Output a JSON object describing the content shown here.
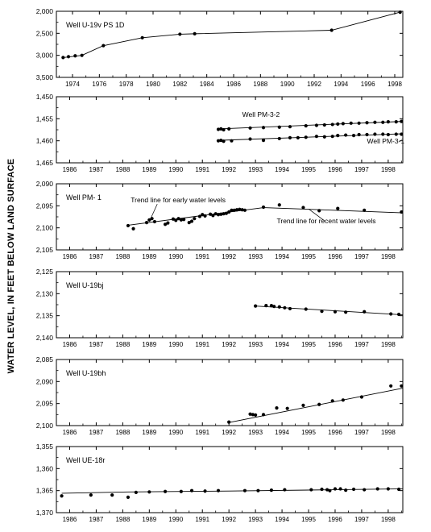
{
  "ylabel": "WATER LEVEL, IN FEET BELOW LAND SURFACE",
  "chart_data": [
    {
      "type": "line",
      "title": "Well U-19v PS 1D",
      "x_ticks": [
        "1974",
        "1976",
        "1978",
        "1980",
        "1982",
        "1984",
        "1986",
        "1988",
        "1990",
        "1992",
        "1994",
        "1996",
        "1998"
      ],
      "xlim": [
        1972.8,
        1998.6
      ],
      "y_ticks": [
        "2,000",
        "2,500",
        "3,000",
        "3,500"
      ],
      "ylim": [
        2000,
        3500
      ],
      "series": [
        {
          "name": "",
          "points": [
            [
              1973.3,
              3050
            ],
            [
              1973.7,
              3030
            ],
            [
              1974.2,
              3010
            ],
            [
              1974.7,
              3000
            ],
            [
              1976.3,
              2780
            ],
            [
              1979.2,
              2600
            ],
            [
              1982.0,
              2520
            ],
            [
              1983.1,
              2510
            ],
            [
              1993.3,
              2430
            ],
            [
              1998.4,
              2020
            ]
          ],
          "line": [
            [
              1973.3,
              3050
            ],
            [
              1974.7,
              3000
            ],
            [
              1976.3,
              2780
            ],
            [
              1979.2,
              2600
            ],
            [
              1982.0,
              2520
            ],
            [
              1983.1,
              2510
            ],
            [
              1993.3,
              2430
            ],
            [
              1998.4,
              2020
            ]
          ]
        }
      ],
      "annotations": []
    },
    {
      "type": "line",
      "title": "",
      "x_ticks": [
        "1986",
        "1987",
        "1988",
        "1989",
        "1990",
        "1991",
        "1992",
        "1993",
        "1994",
        "1995",
        "1996",
        "1997",
        "1998"
      ],
      "xlim": [
        1985.5,
        1998.55
      ],
      "y_ticks": [
        "1,450",
        "1,455",
        "1,460",
        "1,465"
      ],
      "ylim": [
        1450,
        1465
      ],
      "series": [
        {
          "name": "Well PM-3-2",
          "points": [
            [
              1991.6,
              1457.4
            ],
            [
              1991.7,
              1457.3
            ],
            [
              1991.8,
              1457.5
            ],
            [
              1992.0,
              1457.3
            ],
            [
              1992.8,
              1457.1
            ],
            [
              1993.3,
              1457.0
            ],
            [
              1993.9,
              1456.9
            ],
            [
              1994.3,
              1456.8
            ],
            [
              1994.9,
              1456.6
            ],
            [
              1995.3,
              1456.5
            ],
            [
              1995.6,
              1456.4
            ],
            [
              1995.9,
              1456.3
            ],
            [
              1996.1,
              1456.2
            ],
            [
              1996.3,
              1456.1
            ],
            [
              1996.6,
              1456.0
            ],
            [
              1996.9,
              1456.0
            ],
            [
              1997.2,
              1455.9
            ],
            [
              1997.5,
              1455.8
            ],
            [
              1997.8,
              1455.8
            ],
            [
              1998.0,
              1455.7
            ],
            [
              1998.3,
              1455.7
            ],
            [
              1998.5,
              1455.6
            ]
          ],
          "line": [
            [
              1991.6,
              1457.3
            ],
            [
              1998.55,
              1455.6
            ]
          ]
        },
        {
          "name": "Well PM-3-1",
          "points": [
            [
              1991.6,
              1460.0
            ],
            [
              1991.7,
              1459.9
            ],
            [
              1991.8,
              1460.1
            ],
            [
              1992.1,
              1460.0
            ],
            [
              1992.8,
              1459.6
            ],
            [
              1993.3,
              1459.9
            ],
            [
              1993.9,
              1459.5
            ],
            [
              1994.3,
              1459.3
            ],
            [
              1994.6,
              1459.3
            ],
            [
              1994.9,
              1459.2
            ],
            [
              1995.3,
              1459.0
            ],
            [
              1995.6,
              1459.1
            ],
            [
              1995.9,
              1459.0
            ],
            [
              1996.1,
              1458.8
            ],
            [
              1996.4,
              1458.7
            ],
            [
              1996.7,
              1458.8
            ],
            [
              1996.9,
              1458.6
            ],
            [
              1997.2,
              1458.6
            ],
            [
              1997.5,
              1458.5
            ],
            [
              1997.8,
              1458.5
            ],
            [
              1998.0,
              1458.6
            ],
            [
              1998.3,
              1458.5
            ],
            [
              1998.5,
              1458.5
            ]
          ],
          "line": [
            [
              1991.6,
              1459.9
            ],
            [
              1998.55,
              1458.4
            ]
          ]
        }
      ],
      "annotations": [
        {
          "text": "Well PM-3-2",
          "x": 1992.5,
          "y": 1454.6
        },
        {
          "text": "Well PM-3-1",
          "x": 1997.2,
          "y": 1460.6
        }
      ]
    },
    {
      "type": "line",
      "title": "Well PM- 1",
      "x_ticks": [
        "1986",
        "1987",
        "1988",
        "1989",
        "1990",
        "1991",
        "1992",
        "1993",
        "1994",
        "1995",
        "1996",
        "1997",
        "1998"
      ],
      "xlim": [
        1985.5,
        1998.55
      ],
      "y_ticks": [
        "2,090",
        "2,095",
        "2,100",
        "2,105"
      ],
      "ylim": [
        2090,
        2105
      ],
      "series": [
        {
          "name": "",
          "points": [
            [
              1988.2,
              2099.5
            ],
            [
              1988.4,
              2100.2
            ],
            [
              1988.9,
              2098.8
            ],
            [
              1989.0,
              2098.2
            ],
            [
              1989.1,
              2097.9
            ],
            [
              1989.2,
              2098.6
            ],
            [
              1989.6,
              2099.2
            ],
            [
              1989.7,
              2098.9
            ],
            [
              1989.9,
              2098.0
            ],
            [
              1990.0,
              2098.3
            ],
            [
              1990.1,
              2097.9
            ],
            [
              1990.2,
              2098.2
            ],
            [
              1990.3,
              2098.1
            ],
            [
              1990.5,
              2098.8
            ],
            [
              1990.6,
              2098.5
            ],
            [
              1990.7,
              2097.9
            ],
            [
              1990.9,
              2097.4
            ],
            [
              1991.0,
              2097.0
            ],
            [
              1991.1,
              2097.3
            ],
            [
              1991.3,
              2096.9
            ],
            [
              1991.4,
              2097.2
            ],
            [
              1991.5,
              2096.8
            ],
            [
              1991.6,
              2097.0
            ],
            [
              1991.7,
              2096.9
            ],
            [
              1991.8,
              2096.8
            ],
            [
              1991.9,
              2096.7
            ],
            [
              1992.0,
              2096.4
            ],
            [
              1992.1,
              2096.0
            ],
            [
              1992.2,
              2096.0
            ],
            [
              1992.3,
              2095.9
            ],
            [
              1992.4,
              2095.8
            ],
            [
              1992.5,
              2095.9
            ],
            [
              1992.6,
              2096.0
            ],
            [
              1993.3,
              2095.3
            ],
            [
              1993.9,
              2094.8
            ],
            [
              1994.8,
              2095.4
            ],
            [
              1995.4,
              2096.1
            ],
            [
              1996.1,
              2095.6
            ],
            [
              1997.1,
              2096.0
            ],
            [
              1998.5,
              2096.4
            ]
          ],
          "line": [
            [
              1988.2,
              2099.4
            ],
            [
              1993.3,
              2095.4
            ],
            [
              1998.55,
              2096.6
            ]
          ]
        }
      ],
      "annotations": [
        {
          "text": "Trend line for early water levels",
          "x": 1988.3,
          "y": 2094.2
        },
        {
          "text": "Trend line for recent water levels",
          "x": 1993.8,
          "y": 2099.0
        }
      ]
    },
    {
      "type": "line",
      "title": "Well U-19bj",
      "x_ticks": [
        "1986",
        "1987",
        "1988",
        "1989",
        "1990",
        "1991",
        "1992",
        "1993",
        "1994",
        "1995",
        "1996",
        "1997",
        "1998"
      ],
      "xlim": [
        1985.5,
        1998.55
      ],
      "y_ticks": [
        "2,125",
        "2,130",
        "2,135",
        "2,140"
      ],
      "ylim": [
        2125,
        2140
      ],
      "series": [
        {
          "name": "",
          "points": [
            [
              1993.0,
              2132.8
            ],
            [
              1993.4,
              2132.7
            ],
            [
              1993.6,
              2132.7
            ],
            [
              1993.7,
              2132.9
            ],
            [
              1993.9,
              2133.0
            ],
            [
              1994.1,
              2133.2
            ],
            [
              1994.3,
              2133.4
            ],
            [
              1994.9,
              2133.5
            ],
            [
              1995.5,
              2134.0
            ],
            [
              1996.0,
              2134.1
            ],
            [
              1996.4,
              2134.2
            ],
            [
              1997.1,
              2134.1
            ],
            [
              1998.1,
              2134.6
            ],
            [
              1998.4,
              2134.7
            ]
          ],
          "line": [
            [
              1993.0,
              2132.8
            ],
            [
              1998.55,
              2134.8
            ]
          ]
        }
      ],
      "annotations": []
    },
    {
      "type": "line",
      "title": "Well U-19bh",
      "x_ticks": [
        "1986",
        "1987",
        "1988",
        "1989",
        "1990",
        "1991",
        "1992",
        "1993",
        "1994",
        "1995",
        "1996",
        "1997",
        "1998"
      ],
      "xlim": [
        1985.5,
        1998.55
      ],
      "y_ticks": [
        "2,085",
        "2,090",
        "2,095",
        "2,100"
      ],
      "ylim": [
        2085,
        2100
      ],
      "series": [
        {
          "name": "",
          "points": [
            [
              1992.0,
              2099.2
            ],
            [
              1992.8,
              2097.4
            ],
            [
              1992.9,
              2097.5
            ],
            [
              1993.0,
              2097.6
            ],
            [
              1993.3,
              2097.5
            ],
            [
              1993.8,
              2096.0
            ],
            [
              1994.2,
              2096.1
            ],
            [
              1994.8,
              2095.4
            ],
            [
              1995.4,
              2095.2
            ],
            [
              1995.9,
              2094.4
            ],
            [
              1996.3,
              2094.2
            ],
            [
              1997.0,
              2093.5
            ],
            [
              1998.1,
              2091.0
            ],
            [
              1998.5,
              2091.0
            ]
          ],
          "line": [
            [
              1992.0,
              2099.3
            ],
            [
              1998.55,
              2091.5
            ]
          ]
        }
      ],
      "annotations": []
    },
    {
      "type": "line",
      "title": "Well UE-18r",
      "x_ticks": [
        "1986",
        "1987",
        "1988",
        "1989",
        "1990",
        "1991",
        "1992",
        "1993",
        "1994",
        "1995",
        "1996",
        "1997",
        "1998"
      ],
      "xlim": [
        1985.5,
        1998.55
      ],
      "y_ticks": [
        "1,355",
        "1,360",
        "1,365",
        "1,370"
      ],
      "ylim": [
        1355,
        1370
      ],
      "series": [
        {
          "name": "",
          "points": [
            [
              1985.7,
              1366.2
            ],
            [
              1986.8,
              1366.0
            ],
            [
              1987.6,
              1366.0
            ],
            [
              1988.2,
              1366.5
            ],
            [
              1988.5,
              1365.4
            ],
            [
              1989.0,
              1365.3
            ],
            [
              1989.6,
              1365.2
            ],
            [
              1990.2,
              1365.2
            ],
            [
              1990.6,
              1365.0
            ],
            [
              1991.1,
              1365.1
            ],
            [
              1991.6,
              1365.0
            ],
            [
              1992.6,
              1365.0
            ],
            [
              1993.1,
              1365.0
            ],
            [
              1993.6,
              1364.9
            ],
            [
              1994.1,
              1364.8
            ],
            [
              1995.1,
              1364.8
            ],
            [
              1995.5,
              1364.7
            ],
            [
              1995.7,
              1364.8
            ],
            [
              1995.8,
              1365.0
            ],
            [
              1996.0,
              1364.6
            ],
            [
              1996.2,
              1364.6
            ],
            [
              1996.4,
              1364.9
            ],
            [
              1996.7,
              1364.7
            ],
            [
              1997.1,
              1364.8
            ],
            [
              1997.6,
              1364.6
            ],
            [
              1998.0,
              1364.6
            ],
            [
              1998.4,
              1364.7
            ]
          ],
          "line": [
            [
              1985.7,
              1365.6
            ],
            [
              1988.2,
              1365.3
            ],
            [
              1992.0,
              1365.1
            ],
            [
              1996.0,
              1364.8
            ],
            [
              1998.55,
              1364.6
            ]
          ]
        }
      ],
      "annotations": []
    }
  ]
}
